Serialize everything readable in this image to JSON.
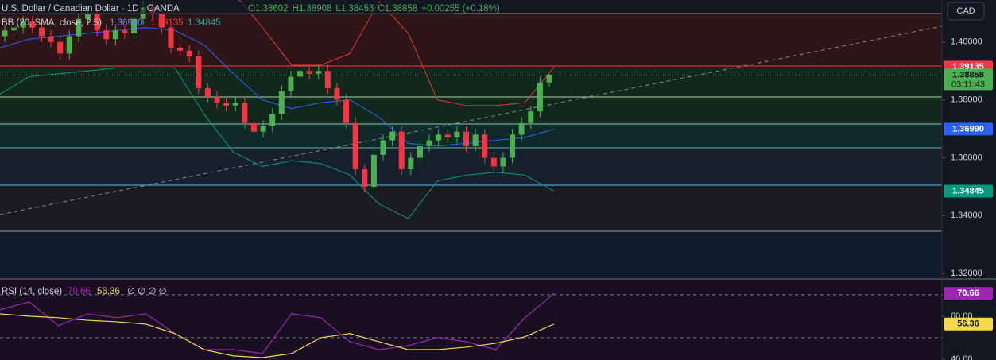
{
  "header": {
    "symbol": "U.S. Dollar / Canadian Dollar · 1D · OANDA",
    "ohlc": [
      "O1.38602",
      "H1.38908",
      "L1.38453",
      "C1.38858",
      "+0.00255 (+0.18%)"
    ],
    "currency": "CAD",
    "countdown": "03:11:43"
  },
  "chart_data": [
    {
      "type": "candlestick",
      "open": [
        1.402,
        1.404,
        1.405,
        1.407,
        1.405,
        1.402,
        1.4,
        1.396,
        1.402,
        1.408,
        1.41,
        1.404,
        1.401,
        1.404,
        1.403,
        1.408,
        1.412,
        1.41,
        1.405,
        1.398,
        1.397,
        1.395,
        1.384,
        1.381,
        1.379,
        1.378,
        1.379,
        1.372,
        1.369,
        1.371,
        1.375,
        1.383,
        1.388,
        1.39,
        1.389,
        1.39,
        1.384,
        1.38,
        1.372,
        1.356,
        1.35,
        1.361,
        1.366,
        1.369,
        1.356,
        1.36,
        1.364,
        1.366,
        1.368,
        1.367,
        1.369,
        1.364,
        1.368,
        1.36,
        1.357,
        1.36,
        1.368,
        1.372,
        1.376,
        1.38602
      ],
      "high": [
        1.406,
        1.407,
        1.409,
        1.409,
        1.407,
        1.404,
        1.402,
        1.404,
        1.41,
        1.412,
        1.412,
        1.406,
        1.406,
        1.406,
        1.41,
        1.414,
        1.414,
        1.412,
        1.407,
        1.4,
        1.399,
        1.397,
        1.386,
        1.383,
        1.381,
        1.381,
        1.381,
        1.374,
        1.373,
        1.377,
        1.385,
        1.39,
        1.392,
        1.392,
        1.392,
        1.392,
        1.386,
        1.382,
        1.374,
        1.358,
        1.363,
        1.368,
        1.371,
        1.371,
        1.362,
        1.366,
        1.368,
        1.37,
        1.37,
        1.371,
        1.371,
        1.37,
        1.37,
        1.362,
        1.362,
        1.37,
        1.374,
        1.378,
        1.388,
        1.38908
      ],
      "low": [
        1.4,
        1.402,
        1.403,
        1.403,
        1.4,
        1.398,
        1.394,
        1.394,
        1.4,
        1.406,
        1.402,
        1.399,
        1.399,
        1.401,
        1.401,
        1.406,
        1.408,
        1.403,
        1.396,
        1.395,
        1.393,
        1.382,
        1.379,
        1.377,
        1.376,
        1.376,
        1.37,
        1.367,
        1.367,
        1.369,
        1.373,
        1.381,
        1.386,
        1.387,
        1.387,
        1.382,
        1.378,
        1.37,
        1.354,
        1.348,
        1.348,
        1.359,
        1.364,
        1.354,
        1.354,
        1.358,
        1.362,
        1.364,
        1.365,
        1.365,
        1.362,
        1.362,
        1.358,
        1.355,
        1.355,
        1.358,
        1.366,
        1.37,
        1.374,
        1.38453
      ],
      "close": [
        1.404,
        1.405,
        1.407,
        1.405,
        1.402,
        1.4,
        1.396,
        1.402,
        1.408,
        1.41,
        1.404,
        1.401,
        1.404,
        1.403,
        1.408,
        1.412,
        1.41,
        1.405,
        1.398,
        1.397,
        1.395,
        1.384,
        1.381,
        1.379,
        1.378,
        1.379,
        1.372,
        1.369,
        1.371,
        1.375,
        1.383,
        1.388,
        1.39,
        1.389,
        1.39,
        1.384,
        1.38,
        1.372,
        1.356,
        1.35,
        1.361,
        1.366,
        1.369,
        1.356,
        1.36,
        1.364,
        1.366,
        1.368,
        1.367,
        1.369,
        1.364,
        1.368,
        1.36,
        1.357,
        1.36,
        1.368,
        1.372,
        1.376,
        1.38602,
        1.38858
      ],
      "up_color": "#4caf50",
      "down_color": "#f23645",
      "ylim": [
        1.3184,
        1.4145
      ],
      "yticks": [
        {
          "value": 1.4,
          "label": "1.40000"
        },
        {
          "value": 1.38,
          "label": "1.38000"
        },
        {
          "value": 1.36,
          "label": "1.36000"
        },
        {
          "value": 1.34,
          "label": "1.34000"
        },
        {
          "value": 1.32,
          "label": "1.32000"
        }
      ],
      "indicator": {
        "title": "BB (20, SMA, close, 2.5)",
        "values": [
          "1.36990",
          "1.39135",
          "1.34845"
        ]
      },
      "series": [
        {
          "color": "#e53935",
          "values": [
            1.418,
            1.418,
            1.418,
            1.418,
            1.418,
            1.418,
            1.418,
            1.418,
            1.417,
            1.405,
            1.392,
            1.392,
            1.396,
            1.414,
            1.403,
            1.38,
            1.378,
            1.378,
            1.379,
            1.39135
          ]
        },
        {
          "color": "#2962ff",
          "values": [
            1.398,
            1.401,
            1.402,
            1.403,
            1.404,
            1.405,
            1.404,
            1.399,
            1.389,
            1.38,
            1.377,
            1.379,
            1.38,
            1.374,
            1.365,
            1.364,
            1.365,
            1.366,
            1.367,
            1.3699
          ]
        },
        {
          "color": "#089981",
          "values": [
            1.382,
            1.388,
            1.389,
            1.39,
            1.391,
            1.391,
            1.391,
            1.375,
            1.362,
            1.357,
            1.359,
            1.358,
            1.354,
            1.344,
            1.339,
            1.352,
            1.354,
            1.355,
            1.354,
            1.34845
          ]
        }
      ],
      "price_labels": [
        {
          "value": 1.39135,
          "label": "1.39135",
          "color": "#f23645"
        },
        {
          "value": 1.38858,
          "label": "1.38858",
          "color": "#4caf50"
        },
        {
          "value": 1.3699,
          "label": "1.36990",
          "color": "#2962ff"
        },
        {
          "value": 1.34845,
          "label": "1.34845",
          "color": "#089981"
        }
      ]
    },
    {
      "type": "line",
      "title": "RSI (14, close)",
      "legend_values": [
        "70.66",
        "56.36"
      ],
      "extra": "∅ ∅ ∅ ∅",
      "series": [
        {
          "color": "#9c27b0",
          "values": [
            63.0,
            66.7,
            55.6,
            61.1,
            59.3,
            61.1,
            51.9,
            44.4,
            44.4,
            42.6,
            61.1,
            59.3,
            48.1,
            44.4,
            46.3,
            50.0,
            48.1,
            44.4,
            59.3,
            70.66
          ]
        },
        {
          "color": "#f5d94a",
          "values": [
            61.1,
            60.0,
            59.3,
            58.1,
            57.4,
            56.3,
            51.9,
            44.4,
            41.5,
            40.7,
            42.6,
            50.0,
            51.9,
            48.1,
            44.4,
            44.4,
            45.6,
            47.4,
            50.4,
            56.36
          ]
        }
      ],
      "ylim": [
        39.6,
        77
      ],
      "yticks": [
        {
          "value": 60,
          "label": "60.00"
        },
        {
          "value": 40,
          "label": "40.00"
        }
      ],
      "levels": [
        70,
        50
      ],
      "price_labels": [
        {
          "value": 70.66,
          "label": "70.66",
          "color": "#9c27b0"
        },
        {
          "value": 56.36,
          "label": "56.36",
          "color": "#f5d94a"
        }
      ]
    }
  ]
}
